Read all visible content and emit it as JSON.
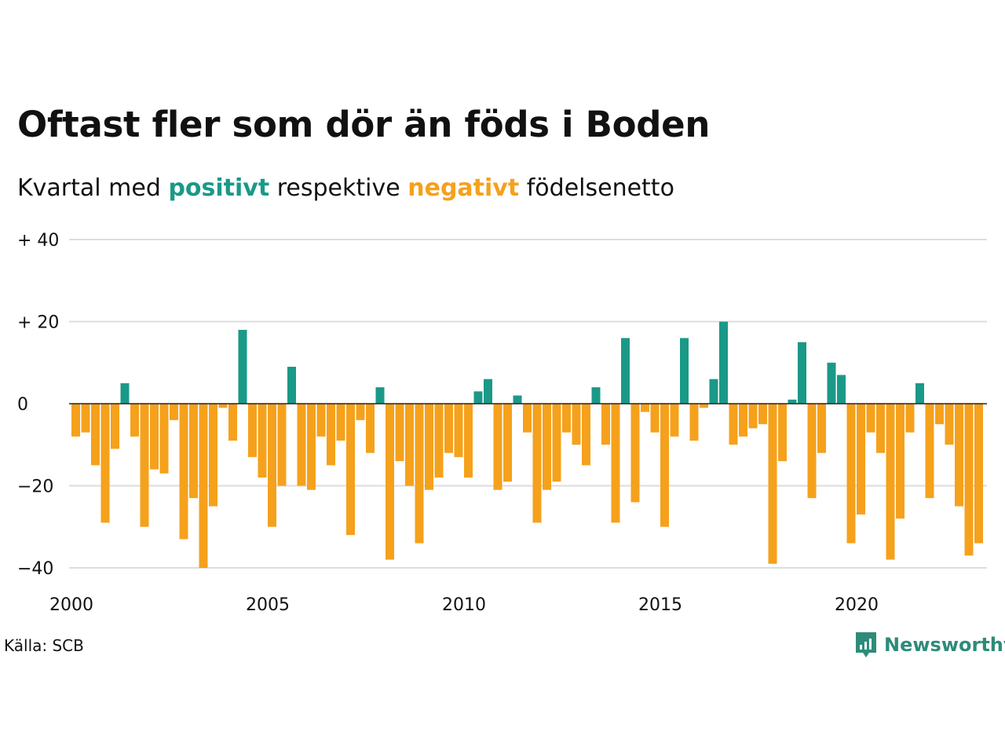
{
  "title": "Oftast fler som dör än föds i Boden",
  "subtitle": {
    "prefix": "Kvartal med",
    "positive_word": "positivt",
    "middle": "respektive",
    "negative_word": "negativt",
    "suffix": "födelsenetto"
  },
  "source": "Källa: SCB",
  "brand": "Newsworthy",
  "icons": {
    "brand_logo": "newsworthy-logo-icon"
  },
  "colors": {
    "positive": "#1a9988",
    "negative": "#f5a11c",
    "grid": "#dddddd",
    "baseline": "#222222",
    "brand": "#2e8b7a"
  },
  "chart_data": {
    "type": "bar",
    "x_start": {
      "year": 2000,
      "quarter": 1
    },
    "x_ticks": [
      "2000",
      "2005",
      "2010",
      "2015",
      "2020"
    ],
    "y_ticks": [
      {
        "value": 40,
        "label": "+ 40"
      },
      {
        "value": 20,
        "label": "+ 20"
      },
      {
        "value": 0,
        "label": "0"
      },
      {
        "value": -20,
        "label": "−20"
      },
      {
        "value": -40,
        "label": "−40"
      }
    ],
    "ylim": [
      -40,
      40
    ],
    "grid": true,
    "values": [
      -8,
      -7,
      -15,
      -29,
      -11,
      5,
      -8,
      -30,
      -16,
      -17,
      -4,
      -33,
      -23,
      -40,
      -25,
      -1,
      -9,
      18,
      -13,
      -18,
      -30,
      -20,
      9,
      -20,
      -21,
      -8,
      -15,
      -9,
      -32,
      -4,
      -12,
      4,
      -38,
      -14,
      -20,
      -34,
      -21,
      -18,
      -12,
      -13,
      -18,
      3,
      6,
      -21,
      -19,
      2,
      -7,
      -29,
      -21,
      -19,
      -7,
      -10,
      -15,
      4,
      -10,
      -29,
      16,
      -24,
      -2,
      -7,
      -30,
      -8,
      16,
      -9,
      -1,
      6,
      20,
      -10,
      -8,
      -6,
      -5,
      -39,
      -14,
      1,
      15,
      -23,
      -12,
      10,
      7,
      -34,
      -27,
      -7,
      -12,
      -38,
      -28,
      -7,
      5,
      -23,
      -5,
      -10,
      -25,
      -37,
      -34
    ]
  }
}
